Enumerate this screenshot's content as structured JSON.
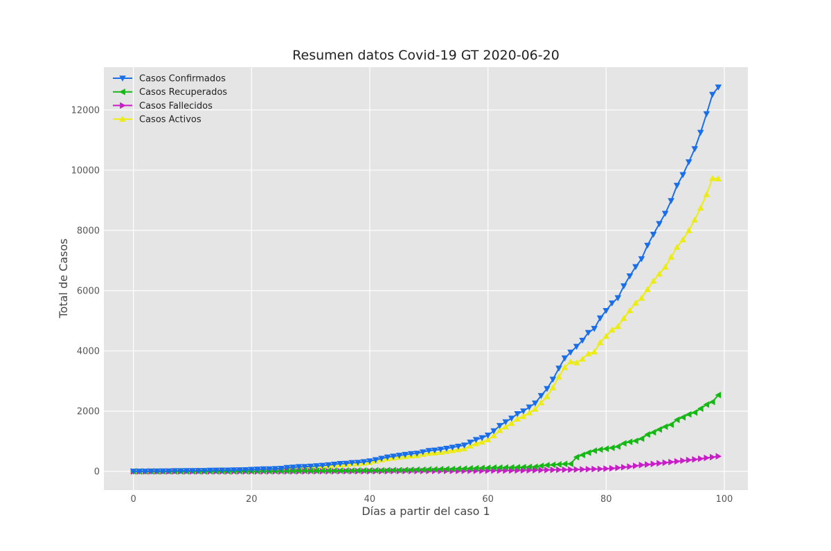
{
  "chart_data": {
    "type": "line",
    "title": "Resumen datos Covid-19 GT 2020-06-20",
    "xlabel": "Días a partir del caso 1",
    "ylabel": "Total de Casos",
    "xlim": [
      -5,
      104
    ],
    "ylim": [
      -620,
      13420
    ],
    "xticks": [
      0,
      20,
      40,
      60,
      80,
      100
    ],
    "yticks": [
      0,
      2000,
      4000,
      6000,
      8000,
      10000,
      12000
    ],
    "grid": true,
    "legend_position": "top-left",
    "background_color": "#e5e5e5",
    "x": [
      0,
      1,
      2,
      3,
      4,
      5,
      6,
      7,
      8,
      9,
      10,
      11,
      12,
      13,
      14,
      15,
      16,
      17,
      18,
      19,
      20,
      21,
      22,
      23,
      24,
      25,
      26,
      27,
      28,
      29,
      30,
      31,
      32,
      33,
      34,
      35,
      36,
      37,
      38,
      39,
      40,
      41,
      42,
      43,
      44,
      45,
      46,
      47,
      48,
      49,
      50,
      51,
      52,
      53,
      54,
      55,
      56,
      57,
      58,
      59,
      60,
      61,
      62,
      63,
      64,
      65,
      66,
      67,
      68,
      69,
      70,
      71,
      72,
      73,
      74,
      75,
      76,
      77,
      78,
      79,
      80,
      81,
      82,
      83,
      84,
      85,
      86,
      87,
      88,
      89,
      90,
      91,
      92,
      93,
      94,
      95,
      96,
      97,
      98,
      99
    ],
    "series": [
      {
        "name": "Casos Confirmados",
        "color": "#1a6fe8",
        "marker": "triangle-down",
        "values": [
          1,
          1,
          2,
          6,
          6,
          9,
          12,
          17,
          19,
          20,
          21,
          24,
          25,
          34,
          36,
          38,
          39,
          46,
          47,
          50,
          61,
          70,
          77,
          80,
          87,
          95,
          126,
          137,
          153,
          156,
          167,
          180,
          196,
          214,
          235,
          257,
          262,
          289,
          294,
          316,
          342,
          384,
          430,
          473,
          500,
          530,
          557,
          585,
          599,
          644,
          688,
          703,
          730,
          763,
          798,
          832,
          869,
          967,
          1052,
          1114,
          1199,
          1342,
          1518,
          1643,
          1763,
          1912,
          2001,
          2133,
          2265,
          2512,
          2743,
          3054,
          3424,
          3760,
          3954,
          4145,
          4348,
          4607,
          4739,
          5087,
          5336,
          5586,
          5760,
          6154,
          6485,
          6792,
          7055,
          7502,
          7866,
          8221,
          8561,
          8982,
          9491,
          9845,
          10272,
          10706,
          11251,
          11868,
          12509,
          12755
        ]
      },
      {
        "name": "Casos Recuperados",
        "color": "#16b816",
        "marker": "triangle-left",
        "values": [
          0,
          0,
          0,
          0,
          0,
          0,
          0,
          0,
          0,
          0,
          0,
          0,
          0,
          0,
          0,
          0,
          0,
          0,
          4,
          4,
          4,
          6,
          10,
          10,
          10,
          12,
          12,
          15,
          17,
          19,
          19,
          19,
          21,
          21,
          21,
          24,
          25,
          25,
          27,
          27,
          30,
          32,
          34,
          40,
          42,
          42,
          47,
          52,
          55,
          58,
          64,
          68,
          73,
          77,
          82,
          88,
          92,
          99,
          106,
          113,
          118,
          125,
          126,
          129,
          132,
          135,
          141,
          149,
          152,
          184,
          208,
          218,
          233,
          249,
          251,
          474,
          547,
          623,
          688,
          726,
          754,
          785,
          826,
          931,
          981,
          1014,
          1087,
          1226,
          1296,
          1394,
          1486,
          1553,
          1714,
          1797,
          1894,
          1955,
          2084,
          2221,
          2307,
          2536
        ]
      },
      {
        "name": "Casos Fallecidos",
        "color": "#c81ec8",
        "marker": "triangle-right",
        "values": [
          0,
          0,
          0,
          0,
          0,
          0,
          0,
          0,
          0,
          1,
          1,
          1,
          1,
          1,
          1,
          1,
          1,
          1,
          1,
          1,
          1,
          1,
          1,
          1,
          2,
          3,
          3,
          3,
          3,
          3,
          4,
          5,
          5,
          5,
          6,
          7,
          7,
          7,
          7,
          7,
          7,
          7,
          8,
          8,
          11,
          11,
          13,
          14,
          15,
          15,
          16,
          17,
          17,
          18,
          19,
          19,
          20,
          20,
          21,
          24,
          26,
          27,
          29,
          29,
          30,
          33,
          35,
          37,
          40,
          45,
          48,
          52,
          55,
          58,
          60,
          63,
          67,
          74,
          79,
          81,
          90,
          102,
          121,
          138,
          160,
          185,
          212,
          229,
          249,
          270,
          289,
          311,
          331,
          356,
          378,
          399,
          421,
          449,
          474,
          502
        ]
      },
      {
        "name": "Casos Activos",
        "color": "#ecec14",
        "marker": "triangle-up",
        "values": [
          1,
          1,
          2,
          6,
          6,
          9,
          12,
          17,
          19,
          19,
          20,
          23,
          24,
          33,
          35,
          37,
          38,
          45,
          42,
          45,
          56,
          63,
          66,
          69,
          75,
          80,
          111,
          119,
          133,
          134,
          144,
          156,
          170,
          188,
          208,
          226,
          230,
          257,
          260,
          282,
          305,
          345,
          388,
          425,
          447,
          477,
          497,
          519,
          529,
          571,
          608,
          618,
          640,
          668,
          697,
          725,
          757,
          848,
          925,
          977,
          1055,
          1190,
          1363,
          1485,
          1601,
          1744,
          1825,
          1947,
          2073,
          2283,
          2487,
          2784,
          3136,
          3453,
          3643,
          3608,
          3734,
          3910,
          3972,
          4280,
          4492,
          4699,
          4813,
          5085,
          5344,
          5593,
          5756,
          6047,
          6321,
          6557,
          6786,
          7118,
          7446,
          7692,
          8000,
          8352,
          8746,
          9198,
          9728,
          9717
        ]
      }
    ]
  }
}
